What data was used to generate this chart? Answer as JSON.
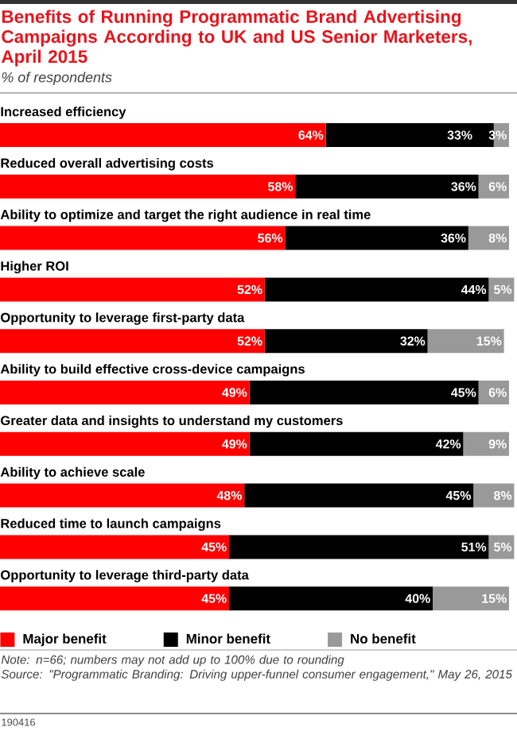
{
  "chart_data": {
    "type": "bar",
    "orientation": "horizontal",
    "stacked": true,
    "legend": "bottom",
    "title": "Benefits of Running Programmatic Brand Advertising Campaigns According to UK and US Senior Marketers, April 2015",
    "subtitle": "% of respondents",
    "categories": [
      "Increased efficiency",
      "Reduced overall advertising costs",
      "Ability to optimize and target the right audience in real time",
      "Higher ROI",
      "Opportunity to leverage first-party data",
      "Ability to build effective cross-device campaigns",
      "Greater data and insights to understand my customers",
      "Ability to achieve scale",
      "Reduced time to launch campaigns",
      "Opportunity to leverage third-party data"
    ],
    "series": [
      {
        "name": "Major benefit",
        "color": "#ff0000",
        "values": [
          64,
          58,
          56,
          52,
          52,
          49,
          49,
          48,
          45,
          45
        ],
        "value_labels": [
          "64%",
          "58%",
          "56%",
          "52%",
          "52%",
          "49%",
          "49%",
          "48%",
          "45%",
          "45%"
        ]
      },
      {
        "name": "Minor benefit",
        "color": "#000000",
        "values": [
          33,
          36,
          36,
          44,
          32,
          45,
          42,
          45,
          51,
          40
        ],
        "value_labels": [
          "33%",
          "36%",
          "36%",
          "44%",
          "32%",
          "45%",
          "42%",
          "45%",
          "51%",
          "40%"
        ]
      },
      {
        "name": "No benefit",
        "color": "#999999",
        "values": [
          3,
          6,
          8,
          5,
          15,
          6,
          9,
          8,
          5,
          15
        ],
        "value_labels": [
          "3%",
          "6%",
          "8%",
          "5%",
          "15%",
          "6%",
          "9%",
          "8%",
          "5%",
          "15%"
        ]
      }
    ],
    "annotations": [
      "Note: n=66; numbers may not add up to 100% due to rounding",
      "Source: \"Programmatic Branding: Driving upper-funnel consumer engagement,\" May 26, 2015",
      "190416"
    ]
  }
}
